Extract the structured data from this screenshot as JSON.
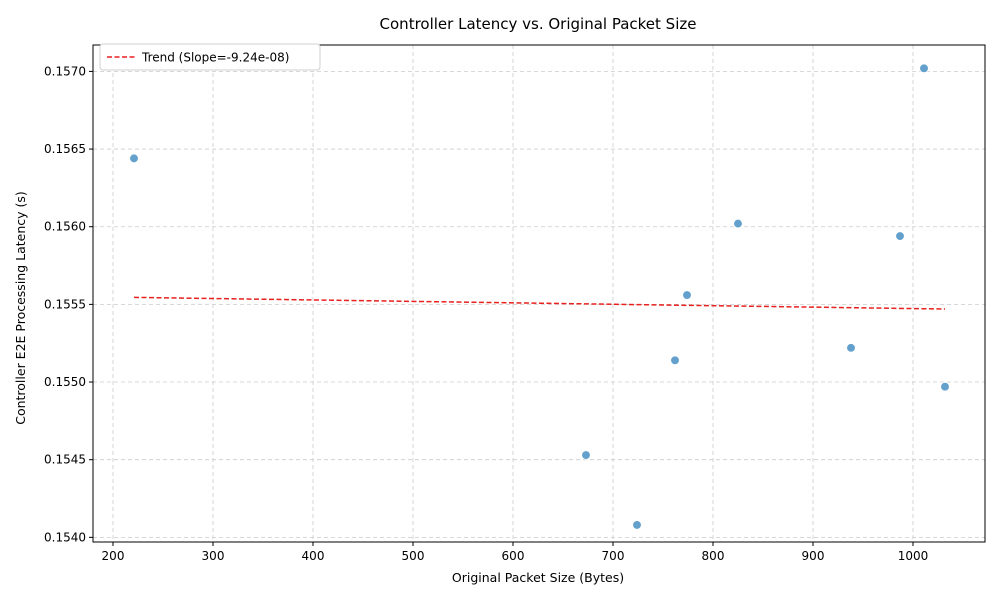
{
  "chart_data": {
    "type": "scatter",
    "title": "Controller Latency vs. Original Packet Size",
    "xlabel": "Original Packet Size (Bytes)",
    "ylabel": "Controller E2E Processing Latency (s)",
    "xlim": [
      180,
      1072
    ],
    "ylim": [
      0.15397,
      0.15717
    ],
    "xticks": [
      200,
      300,
      400,
      500,
      600,
      700,
      800,
      900,
      1000
    ],
    "xtick_labels": [
      "200",
      "300",
      "400",
      "500",
      "600",
      "700",
      "800",
      "900",
      "1000"
    ],
    "yticks": [
      0.154,
      0.1545,
      0.155,
      0.1555,
      0.156,
      0.1565,
      0.157
    ],
    "ytick_labels": [
      "0.1540",
      "0.1545",
      "0.1550",
      "0.1555",
      "0.1560",
      "0.1565",
      "0.1570"
    ],
    "grid": true,
    "points": [
      {
        "x": 221,
        "y": 0.15644
      },
      {
        "x": 673,
        "y": 0.15453
      },
      {
        "x": 724,
        "y": 0.15408
      },
      {
        "x": 762,
        "y": 0.15514
      },
      {
        "x": 774,
        "y": 0.15556
      },
      {
        "x": 825,
        "y": 0.15602
      },
      {
        "x": 938,
        "y": 0.15522
      },
      {
        "x": 987,
        "y": 0.15594
      },
      {
        "x": 1011,
        "y": 0.15702
      },
      {
        "x": 1032,
        "y": 0.15497
      }
    ],
    "point_color": "#5b9bc9",
    "trend": {
      "label": "Trend (Slope=-9.24e-08)",
      "x": [
        221,
        1032
      ],
      "y": [
        0.155545,
        0.15547
      ],
      "color": "#e8201e"
    },
    "legend_position": "top-left"
  }
}
